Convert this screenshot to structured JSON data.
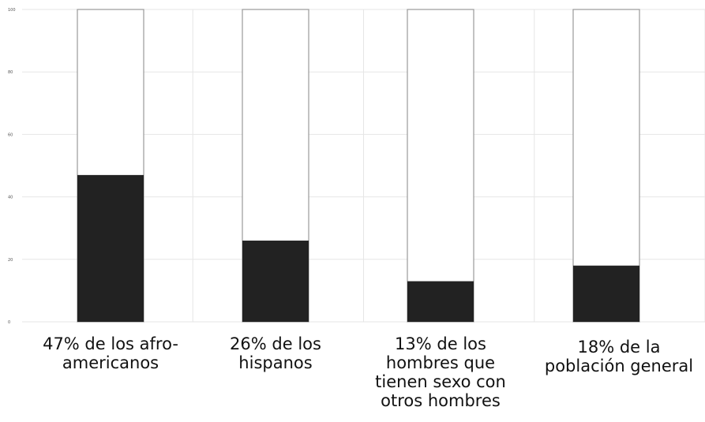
{
  "chart_data": {
    "type": "bar",
    "stacked_to": 100,
    "categories": [
      [
        "47% de los afro-",
        "americanos"
      ],
      [
        "26% de los",
        "hispanos"
      ],
      [
        "13% de los",
        "hombres que",
        "tienen sexo con",
        "otros hombres"
      ],
      [
        "18% de la",
        "población general"
      ]
    ],
    "values": [
      47,
      26,
      13,
      18
    ],
    "title": "",
    "xlabel": "",
    "ylabel": "",
    "ylim": [
      0,
      100
    ],
    "yticks": [
      "0",
      "20",
      "40",
      "60",
      "80",
      "100"
    ],
    "grid": true,
    "colors": {
      "fill": "#222222",
      "remainder": "#ffffff",
      "outline": "#999999",
      "grid": "#e6e6e6"
    }
  }
}
